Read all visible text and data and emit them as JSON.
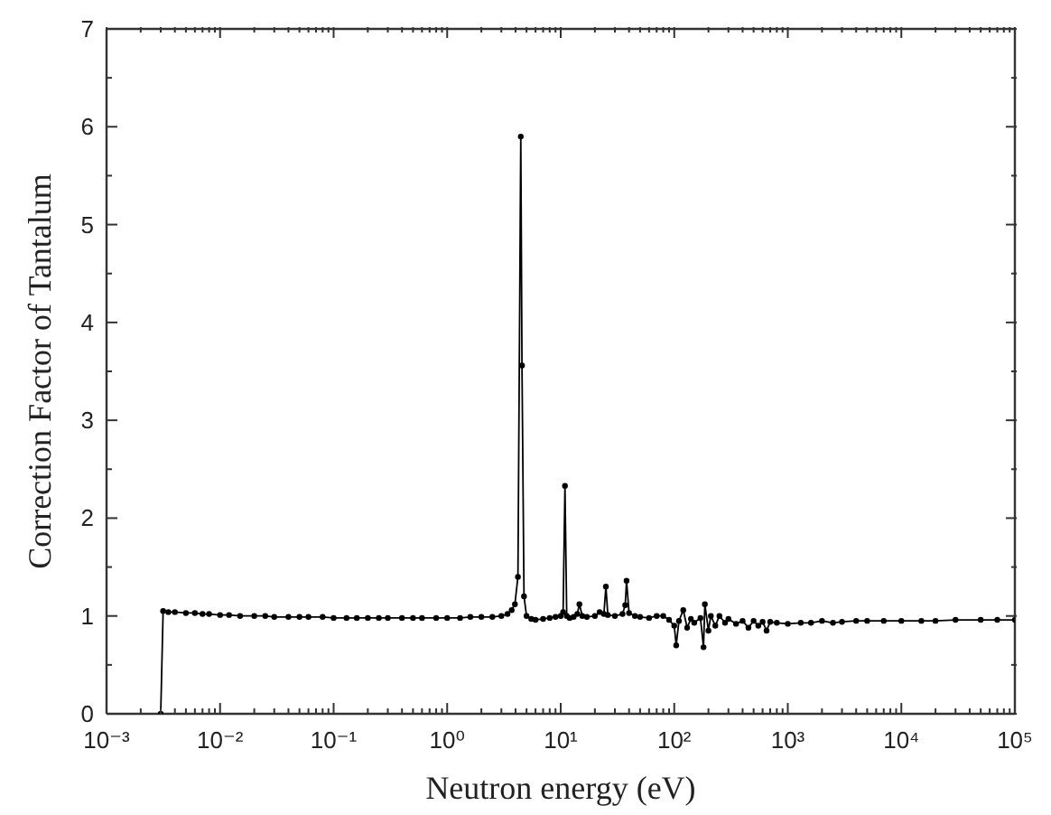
{
  "chart_data": {
    "type": "line",
    "xlabel": "Neutron energy (eV)",
    "ylabel": "Correction Factor of Tantalum",
    "log": "x",
    "marker": "circle",
    "line_style": "solid",
    "xlim": [
      0.001,
      100000
    ],
    "xticks": [
      {
        "value": 0.001,
        "label": "10⁻³"
      },
      {
        "value": 0.002,
        "label": null
      },
      {
        "value": 0.003,
        "label": null
      },
      {
        "value": 0.004,
        "label": null
      },
      {
        "value": 0.005,
        "label": null
      },
      {
        "value": 0.006,
        "label": null
      },
      {
        "value": 0.007,
        "label": null
      },
      {
        "value": 0.008,
        "label": null
      },
      {
        "value": 0.009,
        "label": null
      },
      {
        "value": 0.01,
        "label": "10⁻²"
      },
      {
        "value": 0.02,
        "label": null
      },
      {
        "value": 0.03,
        "label": null
      },
      {
        "value": 0.04,
        "label": null
      },
      {
        "value": 0.05,
        "label": null
      },
      {
        "value": 0.06,
        "label": null
      },
      {
        "value": 0.07,
        "label": null
      },
      {
        "value": 0.08,
        "label": null
      },
      {
        "value": 0.09,
        "label": null
      },
      {
        "value": 0.1,
        "label": "10⁻¹"
      },
      {
        "value": 0.2,
        "label": null
      },
      {
        "value": 0.3,
        "label": null
      },
      {
        "value": 0.4,
        "label": null
      },
      {
        "value": 0.5,
        "label": null
      },
      {
        "value": 0.6,
        "label": null
      },
      {
        "value": 0.7,
        "label": null
      },
      {
        "value": 0.8,
        "label": null
      },
      {
        "value": 0.9,
        "label": null
      },
      {
        "value": 1,
        "label": "10⁰"
      },
      {
        "value": 2,
        "label": null
      },
      {
        "value": 3,
        "label": null
      },
      {
        "value": 4,
        "label": null
      },
      {
        "value": 5,
        "label": null
      },
      {
        "value": 6,
        "label": null
      },
      {
        "value": 7,
        "label": null
      },
      {
        "value": 8,
        "label": null
      },
      {
        "value": 9,
        "label": null
      },
      {
        "value": 10,
        "label": "10¹"
      },
      {
        "value": 20,
        "label": null
      },
      {
        "value": 30,
        "label": null
      },
      {
        "value": 40,
        "label": null
      },
      {
        "value": 50,
        "label": null
      },
      {
        "value": 60,
        "label": null
      },
      {
        "value": 70,
        "label": null
      },
      {
        "value": 80,
        "label": null
      },
      {
        "value": 90,
        "label": null
      },
      {
        "value": 100,
        "label": "10²"
      },
      {
        "value": 200,
        "label": null
      },
      {
        "value": 300,
        "label": null
      },
      {
        "value": 400,
        "label": null
      },
      {
        "value": 500,
        "label": null
      },
      {
        "value": 600,
        "label": null
      },
      {
        "value": 700,
        "label": null
      },
      {
        "value": 800,
        "label": null
      },
      {
        "value": 900,
        "label": null
      },
      {
        "value": 1000,
        "label": "10³"
      },
      {
        "value": 2000,
        "label": null
      },
      {
        "value": 3000,
        "label": null
      },
      {
        "value": 4000,
        "label": null
      },
      {
        "value": 5000,
        "label": null
      },
      {
        "value": 6000,
        "label": null
      },
      {
        "value": 7000,
        "label": null
      },
      {
        "value": 8000,
        "label": null
      },
      {
        "value": 9000,
        "label": null
      },
      {
        "value": 10000,
        "label": "10⁴"
      },
      {
        "value": 20000,
        "label": null
      },
      {
        "value": 30000,
        "label": null
      },
      {
        "value": 40000,
        "label": null
      },
      {
        "value": 50000,
        "label": null
      },
      {
        "value": 60000,
        "label": null
      },
      {
        "value": 70000,
        "label": null
      },
      {
        "value": 80000,
        "label": null
      },
      {
        "value": 90000,
        "label": null
      },
      {
        "value": 100000,
        "label": "10⁵"
      }
    ],
    "ylim": [
      0,
      7
    ],
    "yticks": [
      0,
      {
        "value": 0.5,
        "label": null
      },
      1,
      {
        "value": 1.5,
        "label": null
      },
      2,
      {
        "value": 2.5,
        "label": null
      },
      3,
      {
        "value": 3.5,
        "label": null
      },
      4,
      {
        "value": 4.5,
        "label": null
      },
      5,
      {
        "value": 5.5,
        "label": null
      },
      6,
      {
        "value": 6.5,
        "label": null
      },
      7
    ],
    "x": [
      0.003,
      0.00315,
      0.0035,
      0.004,
      0.005,
      0.006,
      0.007,
      0.008,
      0.01,
      0.012,
      0.015,
      0.02,
      0.025,
      0.03,
      0.04,
      0.05,
      0.06,
      0.08,
      0.1,
      0.13,
      0.16,
      0.2,
      0.25,
      0.3,
      0.4,
      0.5,
      0.6,
      0.8,
      1,
      1.3,
      1.6,
      2,
      2.5,
      3,
      3.4,
      3.7,
      3.95,
      4.2,
      4.45,
      4.56,
      4.75,
      5,
      5.5,
      6,
      7,
      8,
      9,
      10,
      10.5,
      10.9,
      11.3,
      12,
      13,
      14,
      14.6,
      15.5,
      17,
      20,
      22,
      24,
      25,
      26,
      30,
      35,
      37,
      38,
      40,
      45,
      50,
      60,
      70,
      80,
      90,
      100,
      104,
      110,
      120,
      130,
      140,
      150,
      170,
      181,
      186,
      200,
      210,
      230,
      250,
      280,
      300,
      350,
      400,
      450,
      500,
      550,
      600,
      650,
      700,
      800,
      1000,
      1300,
      1600,
      2000,
      2500,
      3000,
      4000,
      5000,
      7000,
      10000,
      15000,
      20000,
      30000,
      50000,
      70000,
      100000
    ],
    "series": [
      {
        "color": "#000000",
        "values": [
          0,
          1.05,
          1.04,
          1.04,
          1.03,
          1.03,
          1.02,
          1.02,
          1.01,
          1.01,
          1.0,
          1.0,
          1.0,
          0.99,
          0.99,
          0.99,
          0.99,
          0.99,
          0.98,
          0.98,
          0.98,
          0.98,
          0.98,
          0.98,
          0.98,
          0.98,
          0.98,
          0.98,
          0.98,
          0.98,
          0.99,
          0.99,
          0.99,
          1.0,
          1.02,
          1.06,
          1.12,
          1.4,
          5.9,
          3.56,
          1.2,
          1.0,
          0.97,
          0.96,
          0.97,
          0.98,
          0.99,
          1.0,
          1.04,
          2.33,
          1.0,
          0.98,
          0.99,
          1.02,
          1.12,
          1.0,
          0.99,
          1.0,
          1.04,
          1.02,
          1.3,
          1.01,
          1.0,
          1.02,
          1.11,
          1.36,
          1.03,
          1.0,
          0.99,
          0.98,
          1.0,
          1.0,
          0.96,
          0.9,
          0.7,
          0.95,
          1.06,
          0.88,
          0.97,
          0.93,
          0.98,
          0.68,
          1.12,
          0.85,
          1.0,
          0.9,
          1.0,
          0.93,
          0.97,
          0.92,
          0.95,
          0.88,
          0.95,
          0.9,
          0.94,
          0.85,
          0.94,
          0.93,
          0.92,
          0.93,
          0.93,
          0.95,
          0.93,
          0.94,
          0.95,
          0.95,
          0.95,
          0.95,
          0.95,
          0.95,
          0.96,
          0.96,
          0.96,
          0.96
        ]
      }
    ]
  }
}
